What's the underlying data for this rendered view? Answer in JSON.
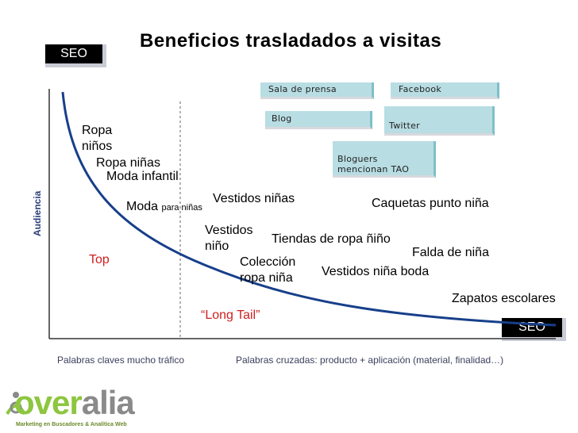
{
  "title": "Beneficios trasladados a  visitas",
  "seo_top": "SEO",
  "seo_bottom": "SEO",
  "pills": {
    "sala_de_prensa": "Sala de prensa",
    "facebook": "Facebook",
    "blog": "Blog",
    "twitter": "Twitter",
    "bloguers_line1": "Bloguers",
    "bloguers_line2": "mencionan TAO"
  },
  "y_axis_label": "Audiencia",
  "keywords": {
    "ropa_ninos_line1": "Ropa",
    "ropa_ninos_line2": "niños",
    "ropa_ninas": "Ropa niñas",
    "moda_infantil": "Moda infantil",
    "moda": "Moda",
    "para_ninas": "para niñas",
    "vestidos_ninas": "Vestidos niñas",
    "vestidos_nino_line1": "Vestidos",
    "vestidos_nino_line2": "niño",
    "tiendas_ropa": "Tiendas de ropa ñiño",
    "coleccion_line1": "Colección",
    "coleccion_line2": "ropa niña",
    "vestidos_boda": "Vestidos niña boda",
    "caquetas": "Caquetas punto niña",
    "falda": "Falda de niña",
    "zapatos": "Zapatos escolares"
  },
  "top_label": "Top",
  "long_tail_label": "“Long Tail”",
  "x_labels": {
    "left": "Palabras claves mucho tráfico",
    "right": "Palabras cruzadas: producto + aplicación (material, finalidad…)"
  },
  "logo": {
    "word": "overalia",
    "tagline": "Marketing en Buscadores & Analítica Web"
  },
  "colors": {
    "curve": "#173f8a",
    "accent_red": "#cc1f1f",
    "pill": "#b8dde3",
    "logo_green": "#8dc63f",
    "logo_gray": "#8a8a8a"
  }
}
